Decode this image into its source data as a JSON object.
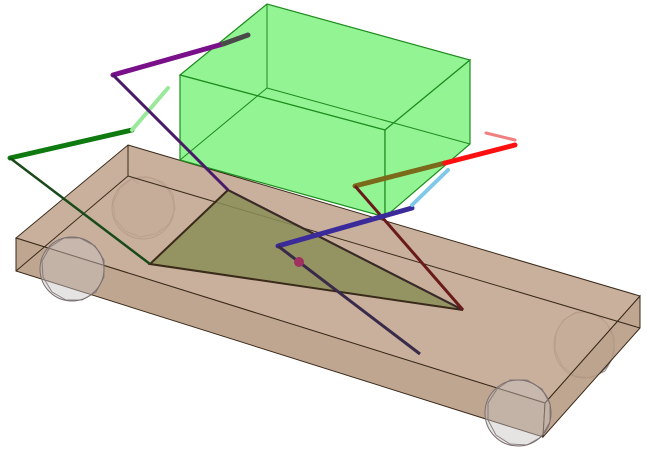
{
  "colors": {
    "background": "#ffffff",
    "platform_top": "#c0a58e",
    "platform_front": "#b89c85",
    "platform_edge": "#5a3a2a",
    "wheel_fill": "#c8c0c0",
    "wheel_stroke": "#7a6e6e",
    "box_fill": "#7af27a",
    "box_stroke": "#1e8c1e",
    "triangle_fill": "#8b8e58",
    "triangle_stroke": "#3a2a1a",
    "arm_green": "#0f7a0f",
    "arm_light_green": "#9ae89a",
    "arm_purple": "#7a0f8a",
    "arm_dark_purple": "#4a1a6a",
    "arm_gray": "#4a4a4a",
    "arm_olive": "#7a6a1a",
    "arm_red": "#ff1010",
    "arm_pink": "#f08080",
    "arm_brown": "#6a1a1a",
    "arm_navy": "#3a2a9a",
    "arm_light_blue": "#80c8e8",
    "arm_dark": "#3a2a2a",
    "joint": "#a03060"
  },
  "scene": {
    "components": [
      "platform",
      "wheel",
      "wheel",
      "wheel",
      "wheel",
      "box",
      "triangle",
      "arm",
      "arm",
      "arm",
      "arm",
      "joint"
    ]
  }
}
